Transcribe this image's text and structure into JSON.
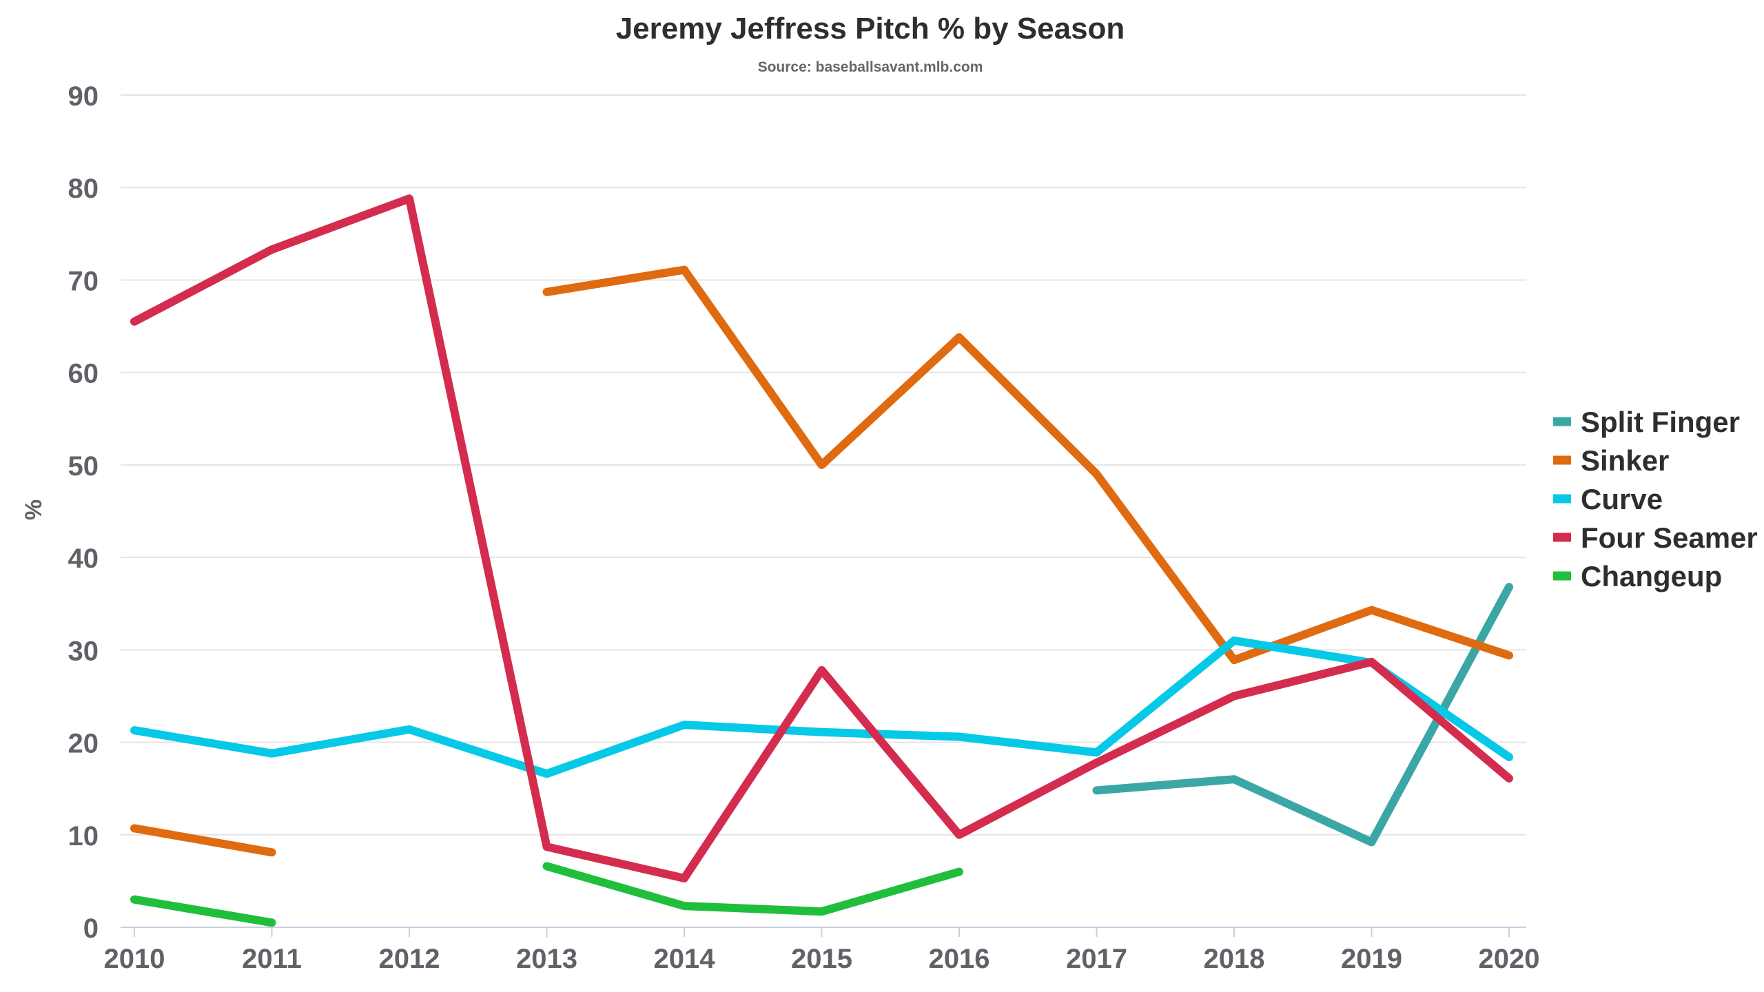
{
  "colors": {
    "split_finger": "#3aa7a6",
    "sinker": "#e06a0f",
    "curve": "#06c9e8",
    "four_seamer": "#d42c4f",
    "changeup": "#20bf3b"
  },
  "chart_data": {
    "type": "line",
    "title": "Jeremy Jeffress Pitch % by Season",
    "subtitle": "Source: baseballsavant.mlb.com",
    "xlabel": "",
    "ylabel": "%",
    "ylim": [
      0,
      90
    ],
    "yticks": [
      0,
      10,
      20,
      30,
      40,
      50,
      60,
      70,
      80,
      90
    ],
    "x": [
      2010,
      2011,
      2012,
      2013,
      2014,
      2015,
      2016,
      2017,
      2018,
      2019,
      2020
    ],
    "x_tick_labels": [
      "2010",
      "2011",
      "2012",
      "2013",
      "2014",
      "2015",
      "2016",
      "2017",
      "2018",
      "2019",
      "2020"
    ],
    "grid": true,
    "legend_position": "right",
    "series": [
      {
        "name": "Split Finger",
        "color_key": "split_finger",
        "values": [
          null,
          null,
          null,
          null,
          null,
          null,
          null,
          14.8,
          16.0,
          9.2,
          36.8
        ]
      },
      {
        "name": "Sinker",
        "color_key": "sinker",
        "values": [
          10.7,
          8.1,
          null,
          68.7,
          71.1,
          50.0,
          63.8,
          49.0,
          28.9,
          34.3,
          29.4
        ]
      },
      {
        "name": "Curve",
        "color_key": "curve",
        "values": [
          21.3,
          18.8,
          21.4,
          16.6,
          21.9,
          21.1,
          20.6,
          18.9,
          31.0,
          28.6,
          18.4
        ]
      },
      {
        "name": "Four Seamer",
        "color_key": "four_seamer",
        "values": [
          65.5,
          73.3,
          78.8,
          8.7,
          5.3,
          27.8,
          10.0,
          17.8,
          25.0,
          28.7,
          16.1
        ]
      },
      {
        "name": "Changeup",
        "color_key": "changeup",
        "values": [
          3.0,
          0.5,
          null,
          6.6,
          2.3,
          1.7,
          6.0,
          null,
          null,
          null,
          null
        ]
      }
    ]
  }
}
